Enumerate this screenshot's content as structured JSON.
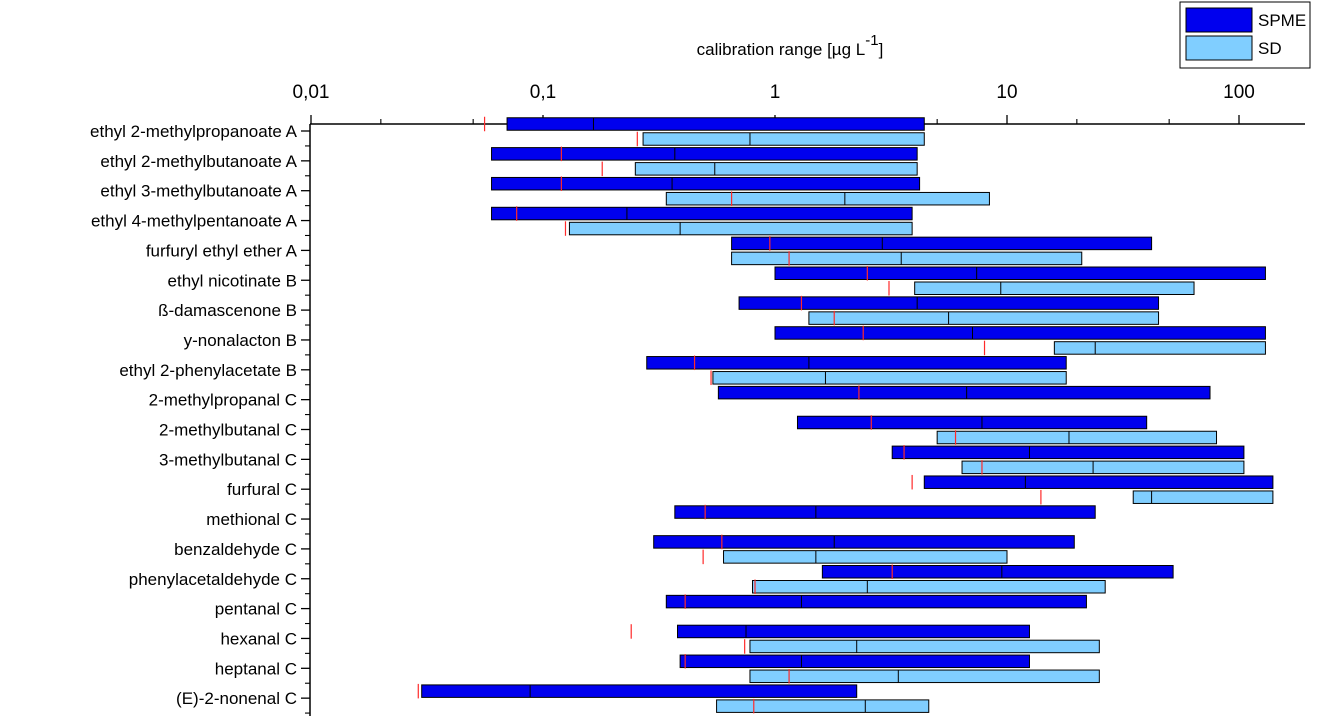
{
  "chart_data": {
    "type": "bar",
    "orientation": "horizontal",
    "floating_bars": true,
    "x_axis": {
      "title": "calibration range [µg L",
      "title_superscript": "-1",
      "title_suffix": "]",
      "scale": "log",
      "range": [
        0.01,
        150
      ],
      "ticks": [
        0.01,
        0.1,
        1,
        10,
        100
      ],
      "tick_labels": [
        "0,01",
        "0,1",
        "1",
        "10",
        "100"
      ],
      "position": "top"
    },
    "legend": {
      "position": "top-right",
      "entries": [
        {
          "name": "SPME",
          "color": "#0000ee"
        },
        {
          "name": "SD",
          "color": "#80ceff"
        }
      ]
    },
    "categories": [
      "ethyl 2-methylpropanoate A",
      "ethyl 2-methylbutanoate A",
      "ethyl 3-methylbutanoate A",
      "ethyl 4-methylpentanoate A",
      "furfuryl ethyl ether A",
      "ethyl nicotinate B",
      "ß-damascenone B",
      "y-nonalacton B",
      "ethyl 2-phenylacetate B",
      "2-methylpropanal C",
      "2-methylbutanal C",
      "3-methylbutanal C",
      "furfural C",
      "methional C",
      "benzaldehyde C",
      "phenylacetaldehyde C",
      "pentanal C",
      "hexanal C",
      "heptanal C",
      "(E)-2-nonenal C"
    ],
    "series": [
      {
        "name": "SPME",
        "color": "#0000ee",
        "ranges": [
          {
            "low": 0.07,
            "high": 4.4,
            "median": 0.165,
            "marker": 0.056
          },
          {
            "low": 0.06,
            "high": 4.1,
            "median": 0.37,
            "marker": 0.12
          },
          {
            "low": 0.06,
            "high": 4.2,
            "median": 0.36,
            "marker": 0.12
          },
          {
            "low": 0.06,
            "high": 3.9,
            "median": 0.23,
            "marker": 0.077
          },
          {
            "low": 0.65,
            "high": 42,
            "median": 2.9,
            "marker": 0.95
          },
          {
            "low": 1.0,
            "high": 130,
            "median": 7.4,
            "marker": 2.5
          },
          {
            "low": 0.7,
            "high": 45,
            "median": 4.1,
            "marker": 1.3
          },
          {
            "low": 1.0,
            "high": 130,
            "median": 7.1,
            "marker": 2.4
          },
          {
            "low": 0.28,
            "high": 18,
            "median": 1.4,
            "marker": 0.45
          },
          {
            "low": 0.57,
            "high": 75,
            "median": 6.7,
            "marker": 2.3
          },
          {
            "low": 1.25,
            "high": 40,
            "median": 7.8,
            "marker": 2.6
          },
          {
            "low": 3.2,
            "high": 105,
            "median": 12.5,
            "marker": 3.6
          },
          {
            "low": 4.4,
            "high": 140,
            "median": 12,
            "marker": 3.9
          },
          {
            "low": 0.37,
            "high": 24,
            "median": 1.5,
            "marker": 0.5
          },
          {
            "low": 0.3,
            "high": 19.5,
            "median": 1.8,
            "marker": 0.59
          },
          {
            "low": 1.6,
            "high": 52,
            "median": 9.5,
            "marker": 3.2
          },
          {
            "low": 0.34,
            "high": 22,
            "median": 1.3,
            "marker": 0.41
          },
          {
            "low": 0.38,
            "high": 12.5,
            "median": 0.75,
            "marker": 0.24
          },
          {
            "low": 0.39,
            "high": 12.5,
            "median": 1.3,
            "marker": 0.41
          },
          {
            "low": 0.03,
            "high": 2.25,
            "median": 0.088,
            "marker": 0.029
          }
        ]
      },
      {
        "name": "SD",
        "color": "#80ceff",
        "ranges": [
          {
            "low": 0.27,
            "high": 4.4,
            "median": 0.78,
            "marker": 0.255
          },
          {
            "low": 0.25,
            "high": 4.1,
            "median": 0.55,
            "marker": 0.18
          },
          {
            "low": 0.34,
            "high": 8.4,
            "median": 2.0,
            "marker": 0.65
          },
          {
            "low": 0.13,
            "high": 3.9,
            "median": 0.39,
            "marker": 0.125
          },
          {
            "low": 0.65,
            "high": 21,
            "median": 3.5,
            "marker": 1.15
          },
          {
            "low": 4.0,
            "high": 64,
            "median": 9.4,
            "marker": 3.1
          },
          {
            "low": 1.4,
            "high": 45,
            "median": 5.6,
            "marker": 1.8
          },
          {
            "low": 16,
            "high": 130,
            "median": 24,
            "marker": 8.0
          },
          {
            "low": 0.54,
            "high": 18,
            "median": 1.65,
            "marker": 0.53
          },
          {
            "low": 5.0,
            "high": 80,
            "median": 18.5,
            "marker": 6.0
          },
          {
            "low": 6.4,
            "high": 105,
            "median": 23.5,
            "marker": 7.8
          },
          {
            "low": 35,
            "high": 140,
            "median": 42,
            "marker": 14
          },
          {
            "low": 0.6,
            "high": 10,
            "median": 1.5,
            "marker": 0.49
          },
          {
            "low": 0.8,
            "high": 26.5,
            "median": 2.5,
            "marker": 0.82
          },
          {
            "low": 0.78,
            "high": 25,
            "median": 2.25,
            "marker": 0.74
          },
          {
            "low": 0.78,
            "high": 25,
            "median": 3.4,
            "marker": 1.15
          },
          {
            "low": 0.56,
            "high": 4.6,
            "median": 2.45,
            "marker": 0.81
          }
        ],
        "row_index": [
          0,
          1,
          2,
          3,
          4,
          5,
          6,
          7,
          8,
          10,
          11,
          12,
          14,
          15,
          17,
          18,
          19
        ]
      }
    ],
    "grid": false
  }
}
